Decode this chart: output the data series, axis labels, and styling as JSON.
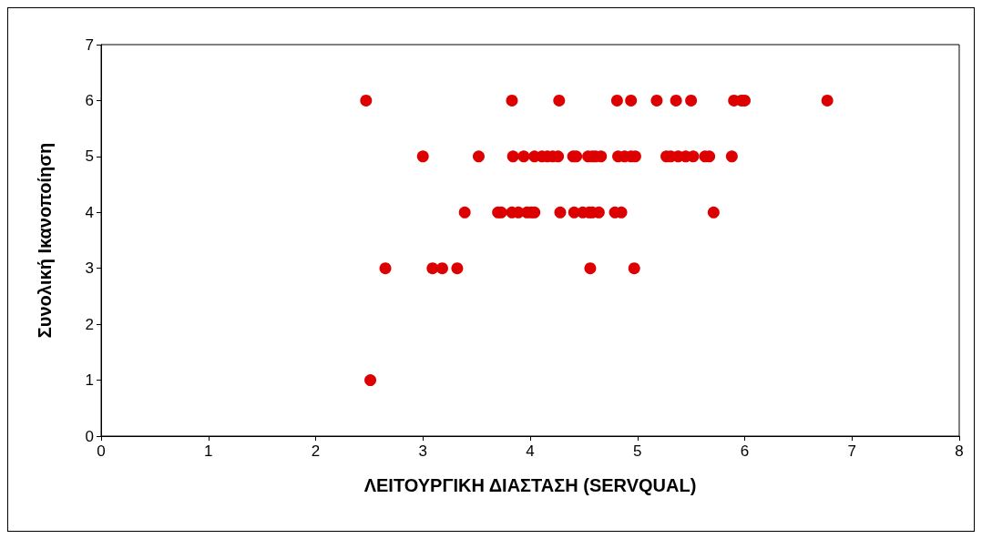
{
  "chart_data": {
    "type": "scatter",
    "xlabel": "ΛΕΙΤΟΥΡΓΙΚΗ ΔΙΑΣΤΑΣΗ (SERVQUAL)",
    "ylabel": "Συνολική Ικανοποίηση",
    "marker": "circle",
    "grid": false,
    "xlim": [
      0,
      8
    ],
    "xticks": [
      0,
      1,
      2,
      3,
      4,
      5,
      6,
      7,
      8
    ],
    "ylim": [
      0,
      7
    ],
    "yticks": [
      0,
      1,
      2,
      3,
      4,
      5,
      6,
      7
    ],
    "series": [
      {
        "color": "#dd0000",
        "x": [
          2.47,
          3.83,
          4.27,
          4.81,
          4.94,
          5.18,
          5.36,
          5.5,
          5.9,
          5.97,
          6.0,
          6.77,
          3.0,
          3.52,
          3.84,
          3.94,
          4.04,
          4.11,
          4.16,
          4.21,
          4.26,
          4.4,
          4.43,
          4.54,
          4.58,
          4.61,
          4.66,
          4.82,
          4.88,
          4.94,
          4.98,
          5.27,
          5.31,
          5.38,
          5.45,
          5.52,
          5.63,
          5.67,
          5.88,
          3.39,
          3.7,
          3.73,
          3.83,
          3.89,
          3.97,
          4.01,
          4.04,
          4.28,
          4.41,
          4.49,
          4.55,
          4.58,
          4.64,
          4.79,
          4.85,
          5.71,
          2.65,
          3.09,
          3.18,
          3.32,
          4.56,
          4.97,
          2.51
        ],
        "values": [
          6,
          6,
          6,
          6,
          6,
          6,
          6,
          6,
          6,
          6,
          6,
          6,
          5,
          5,
          5,
          5,
          5,
          5,
          5,
          5,
          5,
          5,
          5,
          5,
          5,
          5,
          5,
          5,
          5,
          5,
          5,
          5,
          5,
          5,
          5,
          5,
          5,
          5,
          5,
          4,
          4,
          4,
          4,
          4,
          4,
          4,
          4,
          4,
          4,
          4,
          4,
          4,
          4,
          4,
          4,
          4,
          3,
          3,
          3,
          3,
          3,
          3,
          1
        ]
      }
    ]
  }
}
